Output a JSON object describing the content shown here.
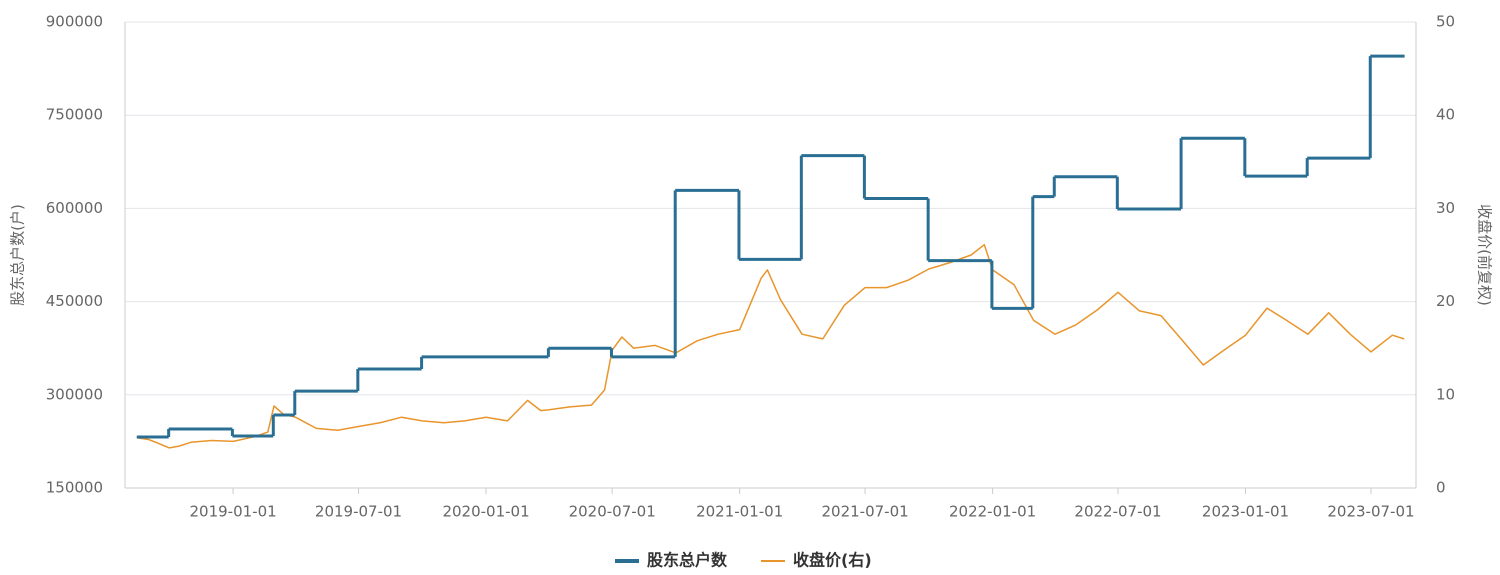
{
  "chart_data": {
    "type": "line",
    "y_label": "股东总户数(户)",
    "y2_label": "收盘价(前复权)",
    "xlim": [
      "2018-07-29",
      "2023-09-04"
    ],
    "xticks": [
      "2019-01-01",
      "2019-07-01",
      "2020-01-01",
      "2020-07-01",
      "2021-01-01",
      "2021-07-01",
      "2022-01-01",
      "2022-07-01",
      "2023-01-01",
      "2023-07-01"
    ],
    "ylim": [
      150000,
      900000
    ],
    "yticks": [
      150000,
      300000,
      450000,
      600000,
      750000,
      900000
    ],
    "y2lim": [
      0,
      50
    ],
    "y2ticks": [
      0,
      10,
      20,
      30,
      40,
      50
    ],
    "grid": true,
    "legend": "bottom",
    "series": [
      {
        "name": "股东总户数",
        "color": "#2a6f93",
        "step": true,
        "x": [
          "2018-08-15",
          "2018-09-30",
          "2018-12-31",
          "2019-02-28",
          "2019-03-31",
          "2019-06-30",
          "2019-09-30",
          "2020-03-31",
          "2020-06-30",
          "2020-09-30",
          "2020-12-31",
          "2021-03-31",
          "2021-06-30",
          "2021-09-30",
          "2021-12-31",
          "2022-02-28",
          "2022-03-31",
          "2022-06-30",
          "2022-09-30",
          "2022-12-31",
          "2023-03-31",
          "2023-06-30",
          "2023-08-18"
        ],
        "values": [
          232000,
          245000,
          233700,
          267500,
          306000,
          341500,
          361000,
          375000,
          361000,
          629000,
          518000,
          685000,
          616000,
          516000,
          439000,
          619000,
          651000,
          599000,
          713000,
          652000,
          681000,
          845000,
          845000
        ]
      },
      {
        "name": "收盘价(右)",
        "color": "#e8952c",
        "axis": "y2",
        "x": [
          "2018-08-15",
          "2018-09-01",
          "2018-09-15",
          "2018-10-01",
          "2018-10-15",
          "2018-11-01",
          "2018-12-01",
          "2019-01-01",
          "2019-02-01",
          "2019-02-20",
          "2019-03-01",
          "2019-03-15",
          "2019-04-01",
          "2019-05-01",
          "2019-06-01",
          "2019-07-01",
          "2019-08-01",
          "2019-09-01",
          "2019-10-01",
          "2019-11-01",
          "2019-12-01",
          "2020-01-01",
          "2020-02-01",
          "2020-03-01",
          "2020-03-20",
          "2020-04-01",
          "2020-05-01",
          "2020-06-01",
          "2020-06-20",
          "2020-07-01",
          "2020-07-15",
          "2020-08-01",
          "2020-09-01",
          "2020-10-01",
          "2020-11-01",
          "2020-12-01",
          "2021-01-01",
          "2021-02-01",
          "2021-02-10",
          "2021-03-01",
          "2021-04-01",
          "2021-05-01",
          "2021-06-01",
          "2021-07-01",
          "2021-08-01",
          "2021-09-01",
          "2021-10-01",
          "2021-11-01",
          "2021-12-01",
          "2021-12-20",
          "2022-01-01",
          "2022-02-01",
          "2022-03-01",
          "2022-04-01",
          "2022-05-01",
          "2022-06-01",
          "2022-07-01",
          "2022-08-01",
          "2022-09-01",
          "2022-10-01",
          "2022-11-01",
          "2022-12-01",
          "2023-01-01",
          "2023-02-01",
          "2023-03-01",
          "2023-04-01",
          "2023-05-01",
          "2023-06-01",
          "2023-07-01",
          "2023-08-01",
          "2023-08-18"
        ],
        "values": [
          5.4,
          5.2,
          4.8,
          4.3,
          4.5,
          4.9,
          5.1,
          5.0,
          5.5,
          6.0,
          8.8,
          7.9,
          7.6,
          6.4,
          6.2,
          6.6,
          7.0,
          7.6,
          7.2,
          7.0,
          7.2,
          7.6,
          7.2,
          9.4,
          8.3,
          8.4,
          8.7,
          8.9,
          10.5,
          14.8,
          16.2,
          15.0,
          15.3,
          14.5,
          15.8,
          16.5,
          17.0,
          22.5,
          23.4,
          20.2,
          16.5,
          16.0,
          19.6,
          21.5,
          21.5,
          22.3,
          23.5,
          24.2,
          25.0,
          26.1,
          23.4,
          21.8,
          18.0,
          16.5,
          17.5,
          19.1,
          21.0,
          19.0,
          18.5,
          15.9,
          13.2,
          14.8,
          16.4,
          19.3,
          18.0,
          16.5,
          18.8,
          16.5,
          14.6,
          16.4,
          16.0
        ]
      }
    ]
  }
}
